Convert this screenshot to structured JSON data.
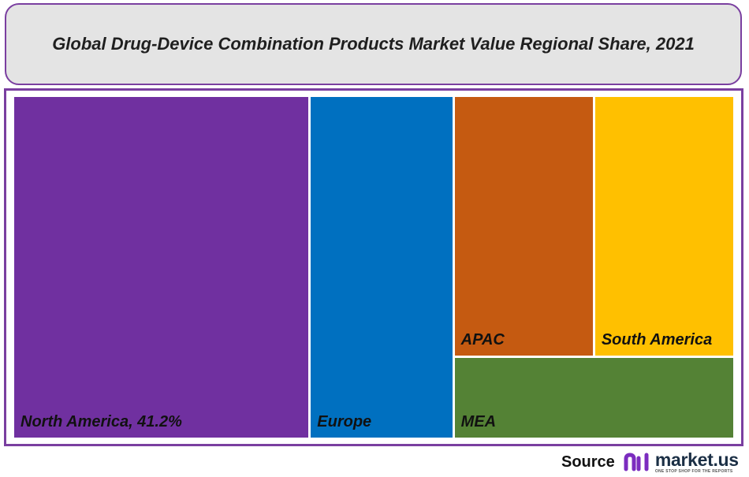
{
  "chart_data": {
    "type": "treemap",
    "title": "Global Drug-Device Combination Products Market Value Regional Share, 2021",
    "series": [
      {
        "name": "North America",
        "label": "North America, 41.2%",
        "value": 41.2,
        "color": "#7030a0"
      },
      {
        "name": "Europe",
        "label": "Europe",
        "value": 19.8,
        "color": "#0070c0"
      },
      {
        "name": "APAC",
        "label": "APAC",
        "value": 14.9,
        "color": "#c55a11"
      },
      {
        "name": "South America",
        "label": "South America",
        "value": 14.9,
        "color": "#ffc000"
      },
      {
        "name": "MEA",
        "label": "MEA",
        "value": 9.2,
        "color": "#548235"
      }
    ]
  },
  "source": {
    "label": "Source",
    "brand_name": "market.us",
    "brand_tagline": "ONE STOP SHOP FOR THE REPORTS",
    "icon": "market-us-logo-icon",
    "brand_color": "#7b2cbf"
  }
}
